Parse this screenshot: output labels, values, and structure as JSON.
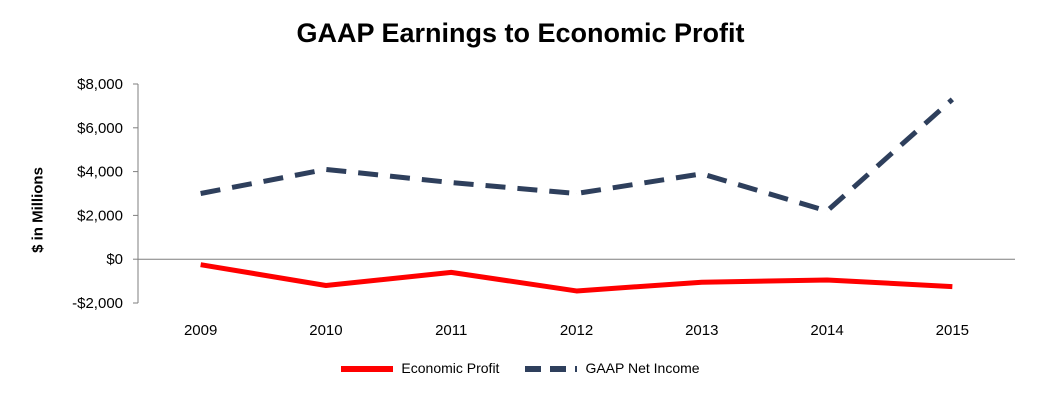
{
  "chart_data": {
    "type": "line",
    "title": "GAAP Earnings to Economic Profit",
    "xlabel": "",
    "ylabel": "$ in Millions",
    "x": [
      "2009",
      "2010",
      "2011",
      "2012",
      "2013",
      "2014",
      "2015"
    ],
    "ylim": [
      -2000,
      8000
    ],
    "yticks": [
      -2000,
      0,
      2000,
      4000,
      6000,
      8000
    ],
    "ytick_labels": [
      "-$2,000",
      "$0",
      "$2,000",
      "$4,000",
      "$6,000",
      "$8,000"
    ],
    "grid": false,
    "legend_position": "bottom",
    "series": [
      {
        "name": "Economic Profit",
        "values": [
          -250,
          -1200,
          -600,
          -1450,
          -1050,
          -950,
          -1250
        ],
        "color": "#ff0000",
        "style": "solid"
      },
      {
        "name": "GAAP Net Income",
        "values": [
          3000,
          4100,
          3500,
          3000,
          3900,
          2200,
          7300
        ],
        "color": "#2e3f5c",
        "style": "dashed"
      }
    ]
  }
}
